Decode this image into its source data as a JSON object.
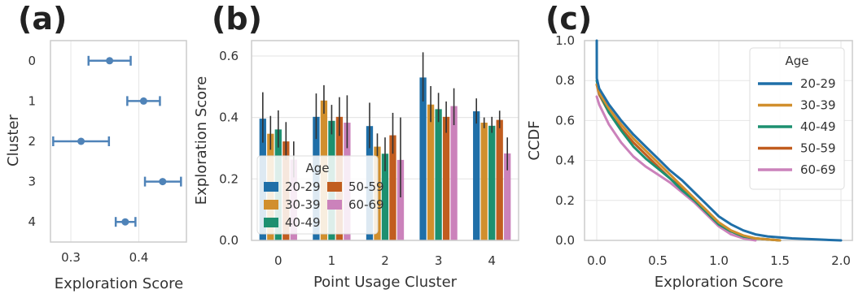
{
  "colors": {
    "20-29": "#1f6fa8",
    "30-39": "#d18f2d",
    "40-49": "#1d9070",
    "50-59": "#c15d1f",
    "60-69": "#cb82bb",
    "point": "#4f83b8",
    "grid": "#e6e6e6",
    "frame": "#cccccc"
  },
  "chart_data": [
    {
      "panel": "(a)",
      "type": "scatter",
      "xlabel": "Exploration Score",
      "ylabel": "Cluster",
      "xlim": [
        0.27,
        0.47
      ],
      "xticks": [
        "0.3",
        "0.4"
      ],
      "xtick_values": [
        0.3,
        0.4
      ],
      "categories": [
        "0",
        "1",
        "2",
        "3",
        "4"
      ],
      "points": [
        {
          "cluster": "0",
          "value": 0.357,
          "lo": 0.326,
          "hi": 0.388
        },
        {
          "cluster": "1",
          "value": 0.407,
          "lo": 0.383,
          "hi": 0.431
        },
        {
          "cluster": "2",
          "value": 0.315,
          "lo": 0.274,
          "hi": 0.356
        },
        {
          "cluster": "3",
          "value": 0.435,
          "lo": 0.409,
          "hi": 0.462
        },
        {
          "cluster": "4",
          "value": 0.38,
          "lo": 0.366,
          "hi": 0.395
        }
      ],
      "grid": true
    },
    {
      "panel": "(b)",
      "type": "bar",
      "xlabel": "Point Usage Cluster",
      "ylabel": "Exploration Score",
      "ylim": [
        0,
        0.65
      ],
      "yticks": [
        "0.0",
        "0.2",
        "0.4",
        "0.6"
      ],
      "ytick_values": [
        0,
        0.2,
        0.4,
        0.6
      ],
      "categories": [
        "0",
        "1",
        "2",
        "3",
        "4"
      ],
      "legend_title": "Age",
      "legend_placement": "lower-left",
      "series": [
        {
          "name": "20-29",
          "values": [
            0.396,
            0.402,
            0.372,
            0.53,
            0.42
          ],
          "err_lo": [
            0.318,
            0.33,
            0.3,
            0.452,
            0.38
          ],
          "err_hi": [
            0.482,
            0.478,
            0.448,
            0.612,
            0.462
          ]
        },
        {
          "name": "30-39",
          "values": [
            0.347,
            0.455,
            0.305,
            0.442,
            0.383
          ],
          "err_lo": [
            0.295,
            0.412,
            0.275,
            0.385,
            0.365
          ],
          "err_hi": [
            0.405,
            0.505,
            0.348,
            0.502,
            0.4
          ]
        },
        {
          "name": "40-49",
          "values": [
            0.361,
            0.389,
            0.282,
            0.427,
            0.373
          ],
          "err_lo": [
            0.302,
            0.345,
            0.225,
            0.385,
            0.35
          ],
          "err_hi": [
            0.423,
            0.441,
            0.335,
            0.48,
            0.402
          ]
        },
        {
          "name": "50-59",
          "values": [
            0.322,
            0.402,
            0.342,
            0.402,
            0.392
          ],
          "err_lo": [
            0.262,
            0.34,
            0.282,
            0.35,
            0.365
          ],
          "err_hi": [
            0.385,
            0.466,
            0.415,
            0.452,
            0.422
          ]
        },
        {
          "name": "60-69",
          "values": [
            0.263,
            0.383,
            0.262,
            0.437,
            0.283
          ],
          "err_lo": [
            0.205,
            0.3,
            0.14,
            0.375,
            0.228
          ],
          "err_hi": [
            0.322,
            0.472,
            0.4,
            0.495,
            0.335
          ]
        }
      ],
      "grid": true
    },
    {
      "panel": "(c)",
      "type": "line",
      "xlabel": "Exploration Score",
      "ylabel": "CCDF",
      "xlim": [
        -0.1,
        2.1
      ],
      "ylim": [
        0,
        1.0
      ],
      "xticks": [
        "0.0",
        "0.5",
        "1.0",
        "1.5",
        "2.0"
      ],
      "xtick_values": [
        0,
        0.5,
        1.0,
        1.5,
        2.0
      ],
      "yticks": [
        "0.0",
        "0.2",
        "0.4",
        "0.6",
        "0.8",
        "1.0"
      ],
      "ytick_values": [
        0,
        0.2,
        0.4,
        0.6,
        0.8,
        1.0
      ],
      "legend_title": "Age",
      "legend_placement": "upper-right",
      "series": [
        {
          "name": "20-29",
          "x": [
            0,
            0.001,
            0.02,
            0.1,
            0.2,
            0.3,
            0.4,
            0.5,
            0.6,
            0.7,
            0.8,
            0.9,
            1.0,
            1.1,
            1.2,
            1.3,
            1.4,
            1.6,
            1.8,
            2.0
          ],
          "y": [
            1.0,
            0.81,
            0.76,
            0.68,
            0.6,
            0.53,
            0.47,
            0.41,
            0.35,
            0.3,
            0.24,
            0.18,
            0.12,
            0.08,
            0.05,
            0.03,
            0.02,
            0.01,
            0.005,
            0.0
          ]
        },
        {
          "name": "30-39",
          "x": [
            0,
            0.02,
            0.1,
            0.2,
            0.3,
            0.4,
            0.5,
            0.6,
            0.7,
            0.8,
            0.9,
            1.0,
            1.1,
            1.2,
            1.3,
            1.5
          ],
          "y": [
            0.78,
            0.74,
            0.66,
            0.58,
            0.51,
            0.45,
            0.39,
            0.33,
            0.27,
            0.21,
            0.15,
            0.09,
            0.05,
            0.025,
            0.01,
            0.0
          ]
        },
        {
          "name": "40-49",
          "x": [
            0,
            0.02,
            0.1,
            0.2,
            0.3,
            0.4,
            0.5,
            0.6,
            0.7,
            0.8,
            0.9,
            1.0,
            1.1,
            1.2,
            1.3,
            1.5
          ],
          "y": [
            0.8,
            0.74,
            0.64,
            0.55,
            0.47,
            0.41,
            0.36,
            0.31,
            0.25,
            0.2,
            0.14,
            0.08,
            0.045,
            0.02,
            0.01,
            0.0
          ]
        },
        {
          "name": "50-59",
          "x": [
            0,
            0.02,
            0.1,
            0.2,
            0.3,
            0.4,
            0.5,
            0.6,
            0.7,
            0.8,
            0.9,
            1.0,
            1.1,
            1.2,
            1.3,
            1.5
          ],
          "y": [
            0.78,
            0.73,
            0.64,
            0.56,
            0.49,
            0.43,
            0.37,
            0.31,
            0.26,
            0.2,
            0.14,
            0.08,
            0.045,
            0.02,
            0.01,
            0.0
          ]
        },
        {
          "name": "60-69",
          "x": [
            0,
            0.02,
            0.1,
            0.2,
            0.3,
            0.4,
            0.5,
            0.6,
            0.7,
            0.8,
            0.9,
            1.0,
            1.1,
            1.2,
            1.3
          ],
          "y": [
            0.72,
            0.68,
            0.58,
            0.49,
            0.42,
            0.37,
            0.33,
            0.29,
            0.24,
            0.19,
            0.13,
            0.07,
            0.03,
            0.01,
            0.0
          ]
        }
      ],
      "grid": true
    }
  ]
}
